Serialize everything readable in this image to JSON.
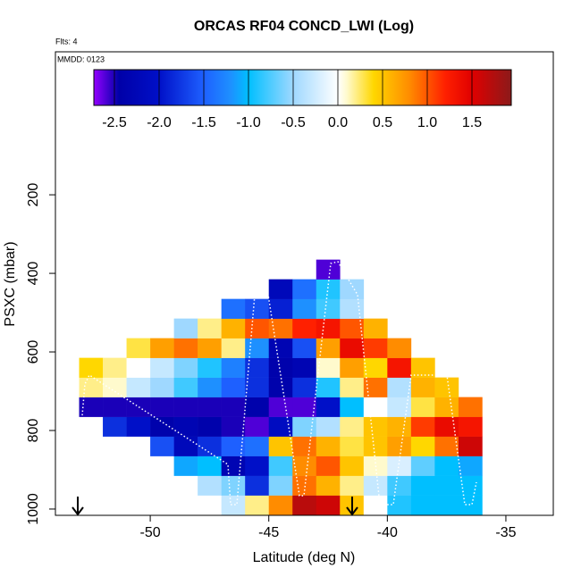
{
  "chart_data": {
    "type": "heatmap",
    "title": "ORCAS RF04 CONCD_LWI (Log)",
    "subtitle": "Flts: 4",
    "annotation": "MMDD: 0123",
    "xlabel": "Latitude (deg N)",
    "ylabel": "PSXC (mbar)",
    "xlim": [
      -54,
      -33
    ],
    "xticks": [
      -50,
      -45,
      -40,
      -35
    ],
    "ylim": [
      1016,
      -164
    ],
    "yticks": [
      200,
      400,
      600,
      800,
      1000
    ],
    "x_bins": [
      -53,
      -52,
      -51,
      -50,
      -49,
      -48,
      -47,
      -46,
      -45,
      -44,
      -43,
      -42,
      -41,
      -40,
      -39,
      -38,
      -37,
      -36
    ],
    "y_bins": [
      1015,
      965,
      915,
      865,
      815,
      765,
      715,
      665,
      615,
      565,
      515,
      465,
      415,
      365
    ],
    "z": [
      [
        null,
        null,
        null,
        null,
        null,
        null,
        -0.3,
        0.2,
        0.8,
        1.7,
        1.6,
        0.5,
        0,
        -0.9,
        -1.0,
        -1.0,
        -1.0
      ],
      [
        null,
        null,
        null,
        null,
        null,
        -0.4,
        -0.6,
        -1.8,
        -0.6,
        0.9,
        0.6,
        0.2,
        -0.3,
        -0.8,
        -1.0,
        -1.0,
        -1.0
      ],
      [
        null,
        null,
        null,
        null,
        -1.1,
        -1.0,
        -2.3,
        -2.0,
        -0.8,
        0.8,
        1.0,
        0.5,
        0.1,
        -0.2,
        -0.7,
        -1.0,
        -1.1
      ],
      [
        null,
        null,
        null,
        -1.6,
        -2.2,
        -1.8,
        -1.5,
        -1.4,
        0.5,
        0.9,
        0.6,
        0.3,
        0.5,
        0.7,
        0.4,
        0.9,
        1.6
      ],
      [
        null,
        -1.8,
        -2.0,
        -2.4,
        -2.3,
        -2.4,
        -2.5,
        -2.6,
        -2.1,
        -0.6,
        -0.4,
        0.2,
        0.5,
        0.6,
        1.1,
        1.4,
        1.3
      ],
      [
        -2.5,
        -2.5,
        -2.5,
        -2.5,
        -2.5,
        -2.5,
        -2.5,
        -2.4,
        -2.6,
        -2.6,
        -2.0,
        -1.0,
        0,
        -0.3,
        0.3,
        0.6,
        0.9
      ],
      [
        0.2,
        0.1,
        -0.3,
        -0.5,
        -0.8,
        -1.2,
        -1.5,
        -1.8,
        -2.4,
        -1.8,
        -0.9,
        0.2,
        0.9,
        -0.4,
        0.6,
        0.5,
        null
      ],
      [
        0.4,
        0.2,
        0.0,
        -0.3,
        -0.6,
        -0.9,
        -1.3,
        -1.8,
        -2.4,
        -2.3,
        0.1,
        0.7,
        0.4,
        1.3,
        0.5,
        null,
        null
      ],
      [
        null,
        null,
        0.3,
        0.7,
        0.9,
        0.7,
        0.2,
        -1.2,
        -2.3,
        -1.6,
        0.7,
        1.4,
        1.1,
        0.8,
        null,
        null,
        null
      ],
      [
        null,
        null,
        null,
        null,
        -0.5,
        0.2,
        0.6,
        1.0,
        0.9,
        1.2,
        1.3,
        1.0,
        0.6,
        null,
        null,
        null,
        null
      ],
      [
        null,
        null,
        null,
        null,
        null,
        null,
        -1.4,
        -1.6,
        -1.9,
        -1.2,
        -0.8,
        -0.4,
        null,
        null,
        null,
        null,
        null
      ],
      [
        null,
        null,
        null,
        null,
        null,
        null,
        null,
        null,
        -2.2,
        -1.4,
        -0.9,
        -0.5,
        null,
        null,
        null,
        null,
        null
      ],
      [
        null,
        null,
        null,
        null,
        null,
        null,
        null,
        null,
        null,
        null,
        -2.6,
        null,
        null,
        null,
        null,
        null,
        null
      ]
    ],
    "clim": [
      -2.73,
      1.94
    ],
    "cticks": [
      -2.5,
      {
        "value": -2.0,
        "label": "-2.0"
      },
      -1.5,
      {
        "value": -1.0,
        "label": "-1.0"
      },
      -0.5,
      {
        "value": 0,
        "label": "0.0"
      },
      0.5,
      {
        "value": 1.0,
        "label": "1.0"
      },
      1.5
    ],
    "colorscale": [
      {
        "value": -2.73,
        "color": "#9400ff"
      },
      {
        "value": -2.45,
        "color": "#0000a8"
      },
      {
        "value": -2.0,
        "color": "#0010c8"
      },
      {
        "value": -1.5,
        "color": "#1e60ff"
      },
      {
        "value": -1.2,
        "color": "#1e90ff"
      },
      {
        "value": -1.0,
        "color": "#00bfff"
      },
      {
        "value": -0.5,
        "color": "#9fd8ff"
      },
      {
        "value": 0,
        "color": "#ffffff"
      },
      {
        "value": 0.1,
        "color": "#fffacd"
      },
      {
        "value": 0.4,
        "color": "#ffd700"
      },
      {
        "value": 0.8,
        "color": "#ff8c00"
      },
      {
        "value": 1.2,
        "color": "#ff2000"
      },
      {
        "value": 1.5,
        "color": "#e00000"
      },
      {
        "value": 1.94,
        "color": "#8b1a1a"
      }
    ]
  }
}
